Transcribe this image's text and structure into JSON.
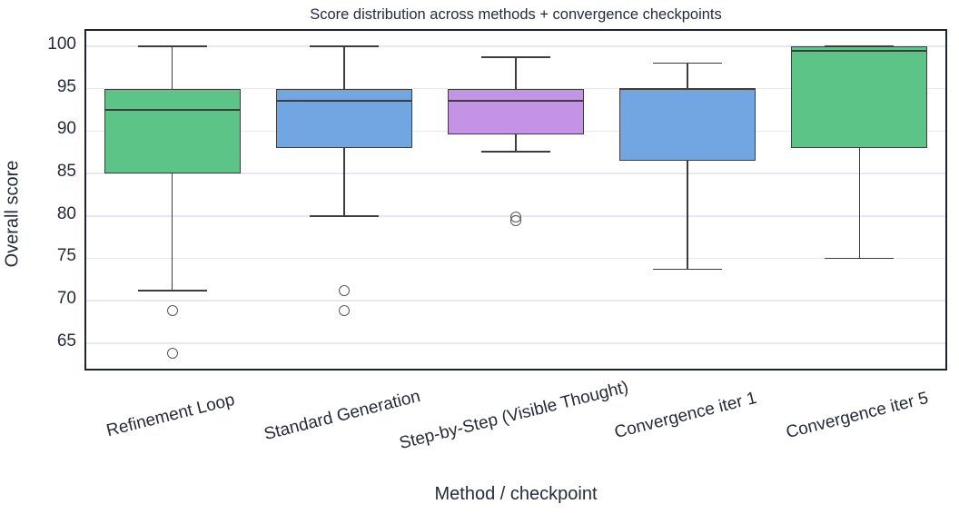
{
  "colors": {
    "spine": "#1c2331",
    "text": "#262b3b",
    "grid": "#e8e8f0",
    "box_edge": "#3d3d3d",
    "green": "#5dc487",
    "blue": "#71a6e2",
    "purple": "#c493e6"
  },
  "chart_data": {
    "type": "box",
    "title": "Score distribution across methods + convergence checkpoints",
    "xlabel": "Method / checkpoint",
    "ylabel": "Overall score",
    "grid": "horizontal",
    "ylim": [
      62,
      101.8
    ],
    "y_ticks": [
      65,
      70,
      75,
      80,
      85,
      90,
      95,
      100
    ],
    "categories": [
      "Refinement Loop",
      "Standard Generation",
      "Step-by-Step (Visible Thought)",
      "Convergence iter 1",
      "Convergence iter 5"
    ],
    "series": [
      {
        "label": "Refinement Loop",
        "color": "#5dc487",
        "whisker_low": 71.2,
        "q1": 85.0,
        "median": 92.5,
        "q3": 95.0,
        "whisker_high": 100.0,
        "outliers": [
          68.9,
          63.8
        ]
      },
      {
        "label": "Standard Generation",
        "color": "#71a6e2",
        "whisker_low": 80.0,
        "q1": 88.0,
        "median": 93.6,
        "q3": 95.0,
        "whisker_high": 100.0,
        "outliers": [
          71.2,
          68.9
        ]
      },
      {
        "label": "Step-by-Step (Visible Thought)",
        "color": "#c493e6",
        "whisker_low": 87.6,
        "q1": 89.6,
        "median": 93.6,
        "q3": 95.0,
        "whisker_high": 98.7,
        "outliers": [
          79.9,
          79.4
        ]
      },
      {
        "label": "Convergence iter 1",
        "color": "#71a6e2",
        "whisker_low": 73.7,
        "q1": 86.5,
        "median": 94.9,
        "q3": 95.0,
        "whisker_high": 98.0,
        "outliers": []
      },
      {
        "label": "Convergence iter 5",
        "color": "#5dc487",
        "whisker_low": 75.0,
        "q1": 88.0,
        "median": 99.4,
        "q3": 100.0,
        "whisker_high": 100.0,
        "outliers": []
      }
    ]
  }
}
